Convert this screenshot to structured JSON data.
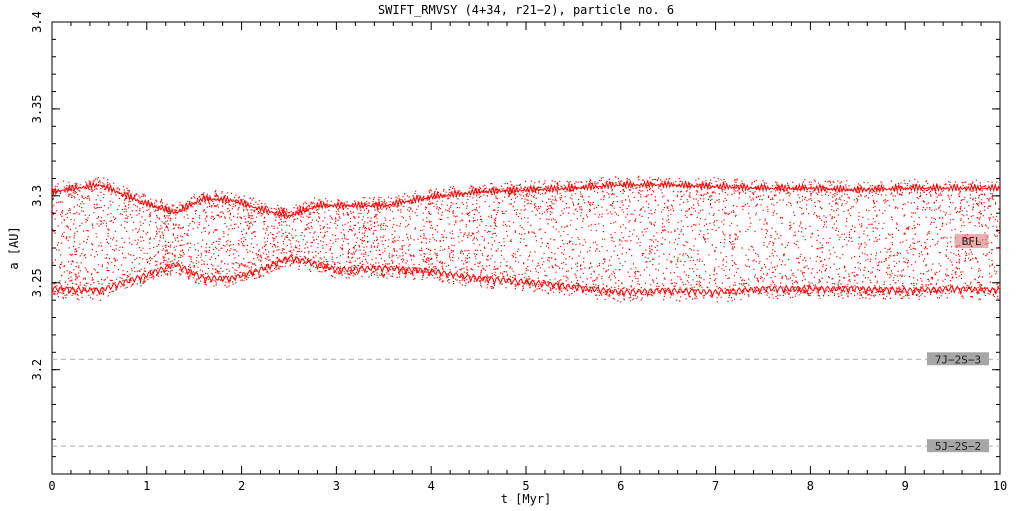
{
  "chart_data": {
    "type": "scatter",
    "title": "SWIFT_RMVSY (4+34, r21−2), particle no. 6",
    "xlabel": "t [Myr]",
    "ylabel": "a [AU]",
    "xlim": [
      0,
      10
    ],
    "ylim": [
      3.14,
      3.4
    ],
    "grid": false,
    "x_ticks": [
      "0",
      "1",
      "2",
      "3",
      "4",
      "5",
      "6",
      "7",
      "8",
      "9",
      "10"
    ],
    "y_ticks": [
      "3.2",
      "3.25",
      "3.3",
      "3.35",
      "3.4"
    ],
    "series": [
      {
        "color": "#ff0000",
        "band": {
          "t": [
            0,
            0.5,
            1.0,
            1.3,
            1.6,
            1.9,
            2.2,
            2.5,
            2.8,
            3.0,
            3.5,
            4.0,
            4.5,
            5.0,
            5.5,
            6.0,
            6.5,
            7.0,
            7.5,
            8.0,
            8.5,
            9.0,
            9.5,
            10
          ],
          "upper": [
            3.305,
            3.309,
            3.298,
            3.293,
            3.301,
            3.3,
            3.295,
            3.291,
            3.297,
            3.297,
            3.297,
            3.302,
            3.305,
            3.306,
            3.307,
            3.309,
            3.309,
            3.308,
            3.307,
            3.307,
            3.306,
            3.307,
            3.307,
            3.307
          ],
          "lower": [
            3.244,
            3.243,
            3.252,
            3.258,
            3.25,
            3.25,
            3.255,
            3.262,
            3.258,
            3.255,
            3.256,
            3.254,
            3.25,
            3.248,
            3.245,
            3.242,
            3.243,
            3.242,
            3.244,
            3.244,
            3.244,
            3.243,
            3.244,
            3.243
          ]
        }
      }
    ],
    "reference_lines": [
      {
        "y": 3.206,
        "label": "7J−2S−3",
        "style": "dashed",
        "color": "#aaaaaa"
      },
      {
        "y": 3.156,
        "label": "5J−2S−2",
        "style": "dashed",
        "color": "#aaaaaa"
      }
    ],
    "annotations": [
      {
        "label": "BFL",
        "x": 9.7,
        "y": 3.274
      }
    ]
  }
}
